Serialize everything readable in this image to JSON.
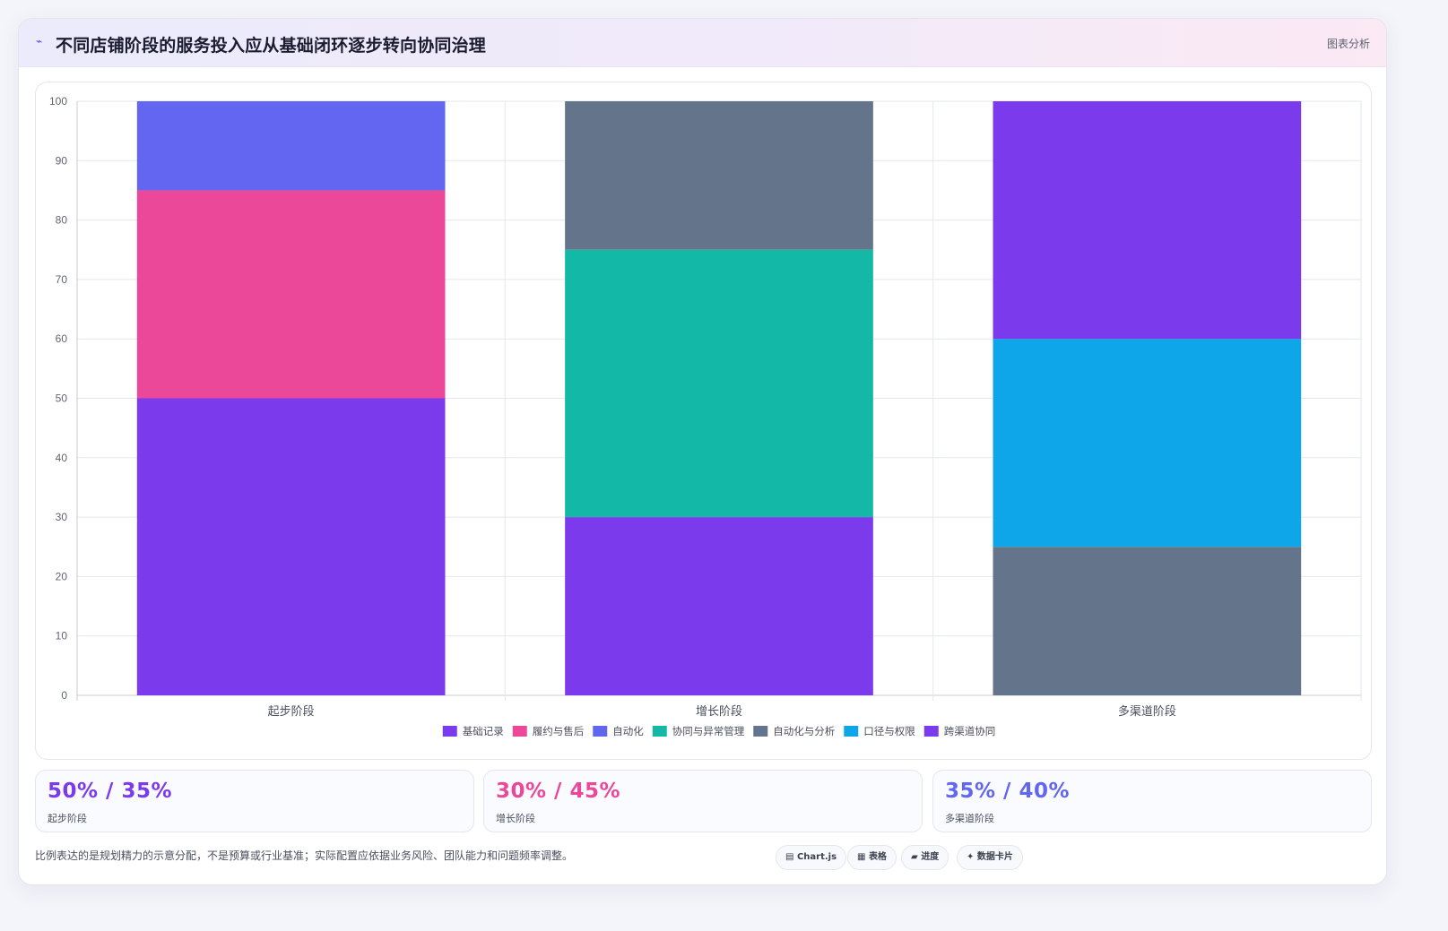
{
  "header": {
    "icon": "⌁",
    "title": "不同店铺阶段的服务投入应从基础闭环逐步转向协同治理",
    "tag": "图表分析"
  },
  "chart_data": {
    "type": "bar",
    "stacked": true,
    "categories": [
      "起步阶段",
      "增长阶段",
      "多渠道阶段"
    ],
    "ylim": [
      0,
      100
    ],
    "yticks": [
      0,
      10,
      20,
      30,
      40,
      50,
      60,
      70,
      80,
      90,
      100
    ],
    "grid": true,
    "legend_position": "bottom",
    "series": [
      {
        "name": "基础记录",
        "color": "#7c3aed",
        "values": [
          50,
          null,
          null
        ]
      },
      {
        "name": "履约与售后",
        "color": "#ec4899",
        "values": [
          35,
          null,
          null
        ]
      },
      {
        "name": "自动化",
        "color": "#6366f1",
        "values": [
          15,
          null,
          null
        ]
      },
      {
        "name": "协同与异常管理",
        "color": "#14b8a6",
        "values": [
          null,
          45,
          null
        ]
      },
      {
        "name": "自动化与分析",
        "color": "#64748b",
        "values": [
          null,
          25,
          25
        ]
      },
      {
        "name": "口径与权限",
        "color": "#0ea5e9",
        "values": [
          null,
          null,
          35
        ]
      },
      {
        "name": "跨渠道协同",
        "color": "#7c3aed",
        "values": [
          null,
          30,
          40
        ]
      }
    ],
    "stack_order": [
      [
        "基础记录",
        "履约与售后",
        "自动化"
      ],
      [
        "跨渠道协同",
        "协同与异常管理",
        "自动化与分析"
      ],
      [
        "自动化与分析",
        "口径与权限",
        "跨渠道协同"
      ]
    ]
  },
  "stats": [
    {
      "value": "50% / 35%",
      "label": "起步阶段",
      "color": "#7c3aed"
    },
    {
      "value": "30% / 45%",
      "label": "增长阶段",
      "color": "#ec4899"
    },
    {
      "value": "35% / 40%",
      "label": "多渠道阶段",
      "color": "#6366f1"
    }
  ],
  "footnote": "比例表达的是规划精力的示意分配，不是预算或行业基准；实际配置应依据业务风险、团队能力和问题频率调整。",
  "pills": [
    {
      "icon": "▤",
      "label": "Chart.js"
    },
    {
      "icon": "▦",
      "label": "表格"
    },
    {
      "icon": "▰",
      "label": "进度"
    },
    {
      "icon": "✦",
      "label": "数据卡片"
    }
  ]
}
